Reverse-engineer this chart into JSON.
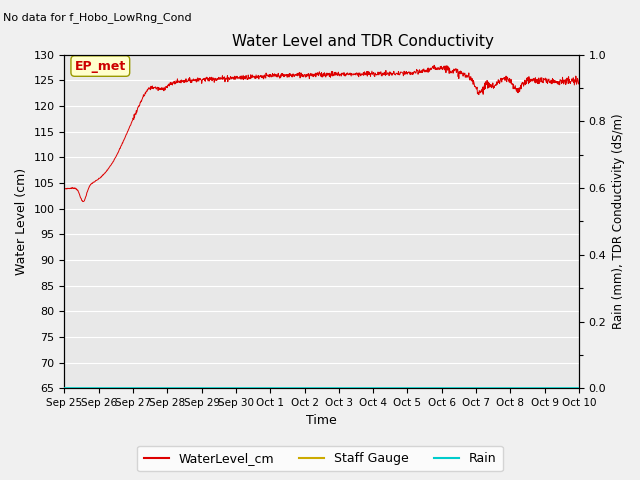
{
  "title": "Water Level and TDR Conductivity",
  "subtitle": "No data for f_Hobo_LowRng_Cond",
  "ylabel_left": "Water Level (cm)",
  "ylabel_right": "Rain (mm), TDR Conductivity (dS/m)",
  "xlabel": "Time",
  "ylim_left": [
    65,
    130
  ],
  "ylim_right": [
    0.0,
    1.0
  ],
  "yticks_left": [
    65,
    70,
    75,
    80,
    85,
    90,
    95,
    100,
    105,
    110,
    115,
    120,
    125,
    130
  ],
  "yticks_right": [
    0.0,
    0.2,
    0.4,
    0.6,
    0.8,
    1.0
  ],
  "yticks_right_minor": [
    0.1,
    0.3,
    0.5,
    0.7,
    0.9
  ],
  "xtick_labels": [
    "Sep 25",
    "Sep 26",
    "Sep 27",
    "Sep 28",
    "Sep 29",
    "Sep 30",
    "Oct 1",
    "Oct 2",
    "Oct 3",
    "Oct 4",
    "Oct 5",
    "Oct 6",
    "Oct 7",
    "Oct 8",
    "Oct 9",
    "Oct 10"
  ],
  "annotation_box_text": "EP_met",
  "annotation_box_color": "#ffffcc",
  "annotation_box_edgecolor": "#999900",
  "legend_entries": [
    {
      "label": "WaterLevel_cm",
      "color": "#dd0000",
      "linestyle": "-"
    },
    {
      "label": "Staff Gauge",
      "color": "#ccaa00",
      "linestyle": "-"
    },
    {
      "label": "Rain",
      "color": "#00cccc",
      "linestyle": "-"
    }
  ],
  "background_color": "#dcdcdc",
  "plot_bg_color": "#e8e8e8",
  "grid_color": "#ffffff",
  "water_level_color": "#dd0000",
  "rain_line_color": "#00cccc",
  "staff_gauge_color": "#ccaa00",
  "fig_facecolor": "#f0f0f0"
}
